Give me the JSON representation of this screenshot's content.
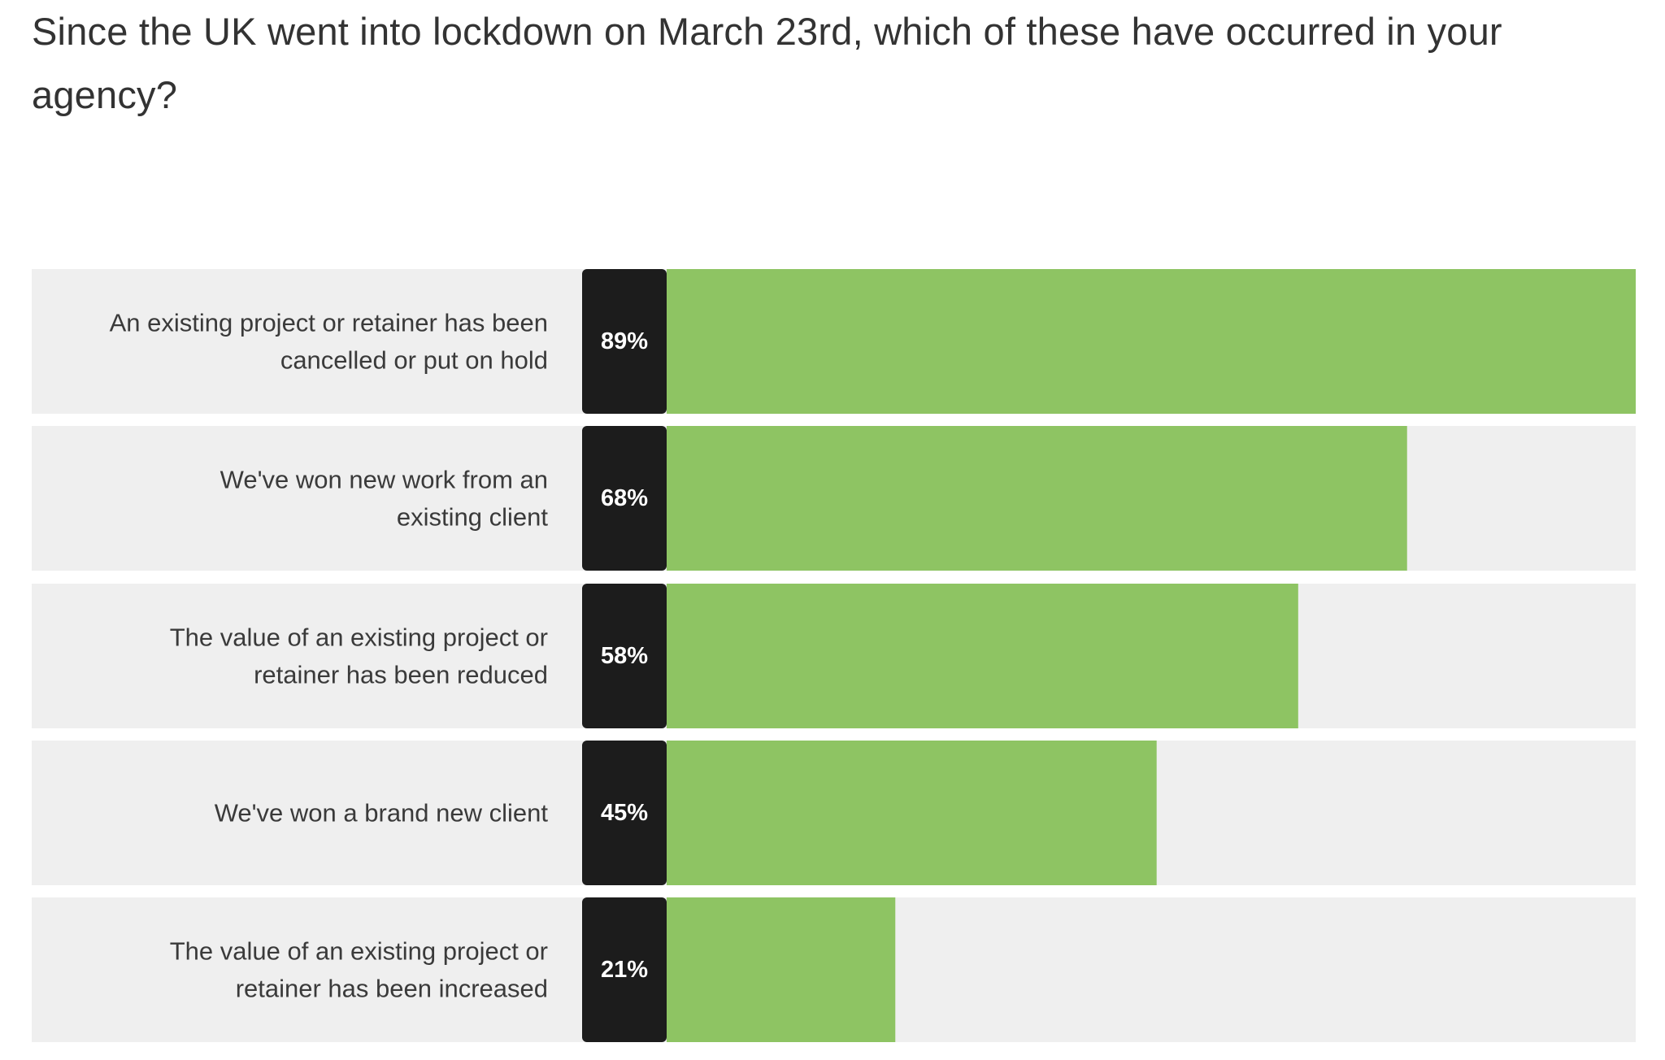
{
  "title": "Since the UK went into lockdown on March 23rd, which of these have occurred in your agency?",
  "colors": {
    "row_background": "#efefef",
    "value_box": "#1c1c1c",
    "bar": "#8ec463",
    "label_text": "#3a3a3a",
    "value_text": "#ffffff"
  },
  "chart_data": {
    "type": "bar",
    "orientation": "horizontal",
    "title": "Since the UK went into lockdown on March 23rd, which of these have occurred in your agency?",
    "categories": [
      [
        "An existing project or retainer has been",
        "cancelled or put on hold"
      ],
      [
        "We've won new work from an",
        "existing client"
      ],
      [
        "The value of an existing project or",
        "retainer has been reduced"
      ],
      [
        "We've won a brand new client"
      ],
      [
        "The value of  an existing project or",
        "retainer has been increased"
      ]
    ],
    "values": [
      89,
      68,
      58,
      45,
      21
    ],
    "value_labels": [
      "89%",
      "68%",
      "58%",
      "45%",
      "21%"
    ],
    "unit": "%",
    "xlim": [
      0,
      89
    ],
    "grid": false,
    "legend": "none"
  }
}
